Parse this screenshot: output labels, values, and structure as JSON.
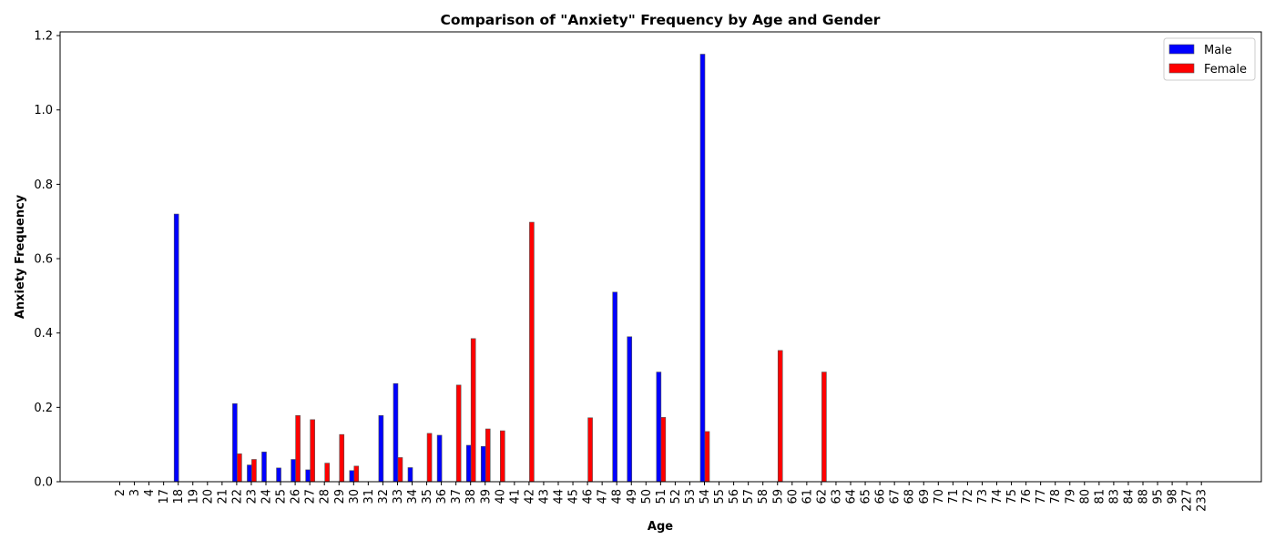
{
  "chart_data": {
    "type": "bar",
    "title": "Comparison of \"Anxiety\" Frequency by Age and Gender",
    "xlabel": "Age",
    "ylabel": "Anxiety Frequency",
    "ylim": [
      0,
      1.21
    ],
    "yticks": [
      "0.0",
      "0.2",
      "0.4",
      "0.6",
      "0.8",
      "1.0",
      "1.2"
    ],
    "grid": false,
    "legend_position": "top-right",
    "categories": [
      "2",
      "3",
      "4",
      "17",
      "18",
      "19",
      "20",
      "21",
      "22",
      "23",
      "24",
      "25",
      "26",
      "27",
      "28",
      "29",
      "30",
      "31",
      "32",
      "33",
      "34",
      "35",
      "36",
      "37",
      "38",
      "39",
      "40",
      "41",
      "42",
      "43",
      "44",
      "45",
      "46",
      "47",
      "48",
      "49",
      "50",
      "51",
      "52",
      "53",
      "54",
      "55",
      "56",
      "57",
      "58",
      "59",
      "60",
      "61",
      "62",
      "63",
      "64",
      "65",
      "66",
      "67",
      "68",
      "69",
      "70",
      "71",
      "72",
      "73",
      "74",
      "75",
      "76",
      "77",
      "78",
      "79",
      "80",
      "81",
      "83",
      "84",
      "88",
      "95",
      "98",
      "227",
      "233"
    ],
    "series": [
      {
        "name": "Male",
        "color": "#0000ff",
        "values": [
          0,
          0,
          0,
          0,
          0.72,
          0,
          0,
          0,
          0.21,
          0.045,
          0.08,
          0.037,
          0.06,
          0.032,
          0,
          0,
          0.03,
          0,
          0.178,
          0.264,
          0.038,
          0,
          0.125,
          0,
          0.098,
          0.095,
          0,
          0,
          0,
          0,
          0,
          0,
          0,
          0,
          0.51,
          0.39,
          0,
          0.295,
          0,
          0,
          1.15,
          0,
          0,
          0,
          0,
          0,
          0,
          0,
          0,
          0,
          0,
          0,
          0,
          0,
          0,
          0,
          0,
          0,
          0,
          0,
          0,
          0,
          0,
          0,
          0,
          0,
          0,
          0,
          0,
          0,
          0,
          0,
          0,
          0,
          0
        ]
      },
      {
        "name": "Female",
        "color": "#ff0000",
        "values": [
          0,
          0,
          0,
          0,
          0,
          0,
          0,
          0,
          0.075,
          0.06,
          0,
          0,
          0.178,
          0.167,
          0.05,
          0.127,
          0.042,
          0,
          0,
          0.065,
          0,
          0.13,
          0,
          0.26,
          0.385,
          0.142,
          0.137,
          0,
          0.698,
          0,
          0,
          0,
          0.172,
          0,
          0,
          0,
          0,
          0.173,
          0,
          0,
          0.135,
          0,
          0,
          0,
          0,
          0.353,
          0,
          0,
          0.295,
          0,
          0,
          0,
          0,
          0,
          0,
          0,
          0,
          0,
          0,
          0,
          0,
          0,
          0,
          0,
          0,
          0,
          0,
          0,
          0,
          0,
          0,
          0,
          0,
          0,
          0
        ]
      }
    ]
  }
}
